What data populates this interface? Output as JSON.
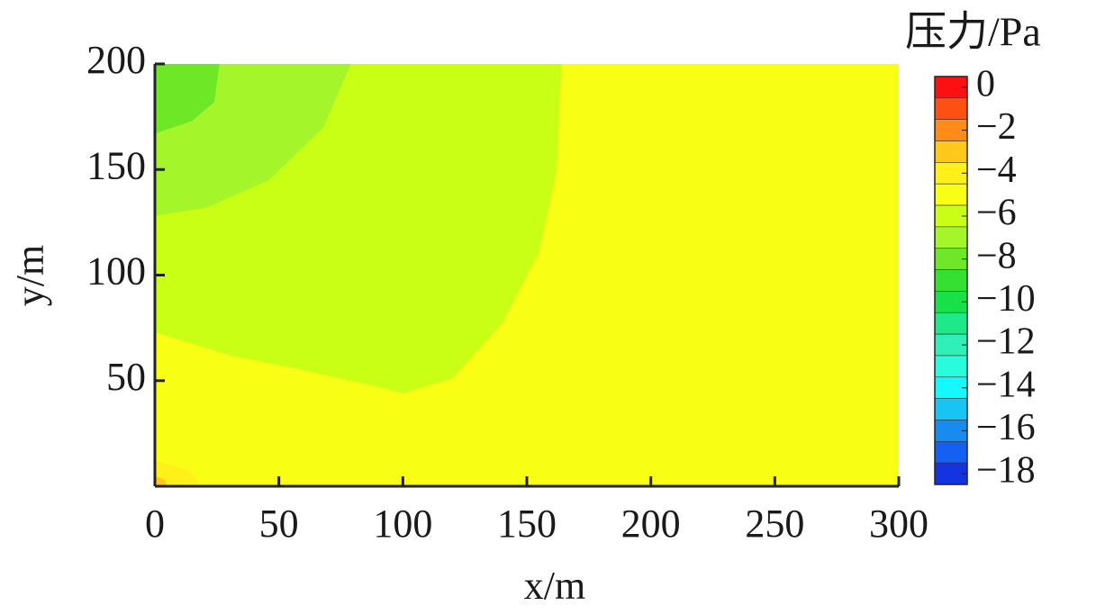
{
  "chart_data": {
    "type": "contour",
    "xlabel": "x/m",
    "ylabel": "y/m",
    "colorbar_title": "压力/Pa",
    "xlim": [
      0,
      300
    ],
    "ylim": [
      0,
      200
    ],
    "xticks": [
      0,
      50,
      100,
      150,
      200,
      250,
      300
    ],
    "yticks": [
      50,
      100,
      150,
      200
    ],
    "colorbar": {
      "levels": [
        0,
        -1,
        -2,
        -3,
        -4,
        -5,
        -6,
        -7,
        -8,
        -9,
        -10,
        -11,
        -12,
        -13,
        -14,
        -15,
        -16,
        -17,
        -18
      ],
      "colors": [
        "#ff1010",
        "#ff5014",
        "#ff8c18",
        "#ffc81a",
        "#fff01a",
        "#f8ff14",
        "#c8ff14",
        "#a4f52a",
        "#6ee826",
        "#36e030",
        "#18e048",
        "#1ee888",
        "#30f0b8",
        "#28fcdc",
        "#14f8ff",
        "#18c4f4",
        "#168cf0",
        "#1560f0",
        "#1434e0"
      ],
      "lim": [
        -18.5,
        0.5
      ],
      "ticks": [
        {
          "value": 0,
          "label": "0"
        },
        {
          "value": -2,
          "label": "−2"
        },
        {
          "value": -4,
          "label": "−4"
        },
        {
          "value": -6,
          "label": "−6"
        },
        {
          "value": -8,
          "label": "−8"
        },
        {
          "value": -10,
          "label": "−10"
        },
        {
          "value": -12,
          "label": "−12"
        },
        {
          "value": -14,
          "label": "−14"
        },
        {
          "value": -16,
          "label": "−16"
        },
        {
          "value": -18,
          "label": "−18"
        }
      ]
    },
    "background_level": -5,
    "contours": [
      {
        "level": -6,
        "x": [
          0,
          30,
          60,
          90,
          100,
          120,
          140,
          155,
          162,
          164,
          0
        ],
        "y": [
          73,
          62,
          55,
          47,
          44,
          51,
          77,
          111,
          149,
          200,
          200
        ]
      },
      {
        "level": -7,
        "x": [
          0,
          21,
          46,
          68,
          79,
          0
        ],
        "y": [
          128,
          132,
          145,
          170,
          200,
          200
        ]
      },
      {
        "level": -8,
        "x": [
          0,
          15,
          24,
          26,
          0
        ],
        "y": [
          167,
          173,
          182,
          200,
          200
        ]
      },
      {
        "level": -4,
        "x": [
          0,
          7,
          13,
          17,
          18,
          0
        ],
        "y": [
          12,
          10,
          8,
          3,
          0,
          0
        ]
      },
      {
        "level": -3,
        "x": [
          0,
          4,
          5,
          0
        ],
        "y": [
          5,
          3,
          0,
          0
        ]
      }
    ]
  }
}
